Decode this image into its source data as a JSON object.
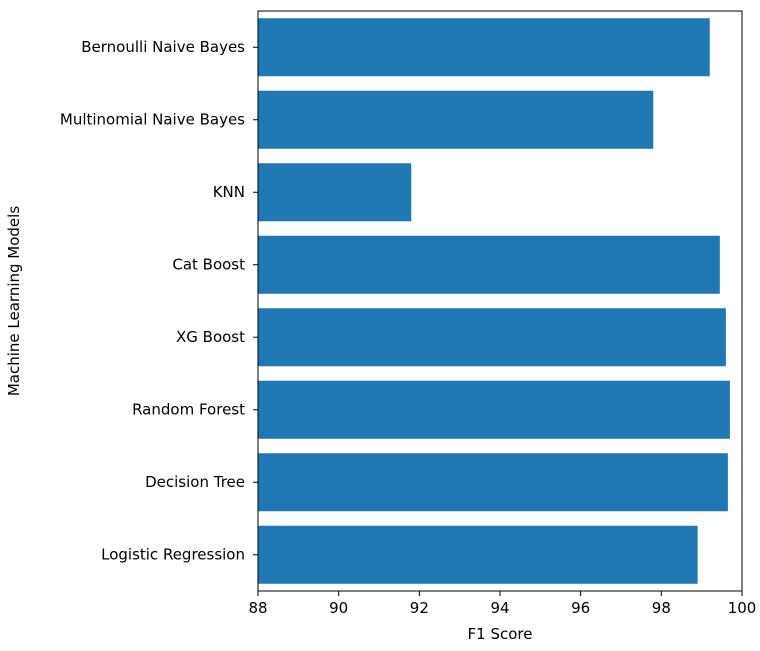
{
  "chart_data": {
    "type": "bar",
    "orientation": "horizontal",
    "title": "",
    "xlabel": "F1 Score",
    "ylabel": "Machine Learning Models",
    "categories": [
      "Logistic Regression",
      "Decision Tree",
      "Random Forest",
      "XG Boost",
      "Cat Boost",
      "KNN",
      "Multinomial Naive Bayes",
      "Bernoulli Naive Bayes"
    ],
    "values": [
      98.9,
      99.65,
      99.7,
      99.6,
      99.45,
      91.8,
      97.8,
      99.2
    ],
    "xlim": [
      88,
      100
    ],
    "xticks": [
      "88",
      "90",
      "92",
      "94",
      "96",
      "98",
      "100"
    ],
    "bar_color": "#1f77b4",
    "grid": false,
    "legend": false
  }
}
